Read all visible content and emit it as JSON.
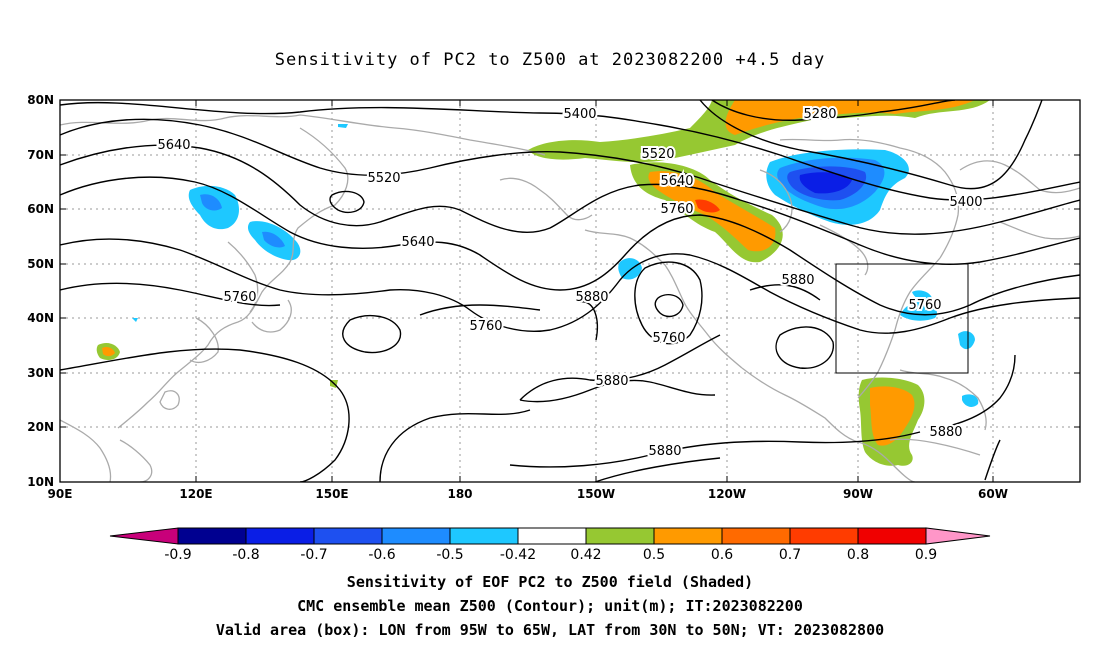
{
  "title": "Sensitivity of PC2 to Z500 at 2023082200 +4.5 day",
  "lat_ticks": [
    "80N",
    "70N",
    "60N",
    "50N",
    "40N",
    "30N",
    "20N",
    "10N"
  ],
  "lon_ticks": [
    "90E",
    "120E",
    "150E",
    "180",
    "150W",
    "120W",
    "90W",
    "60W"
  ],
  "contour_labels": [
    {
      "text": "5400"
    },
    {
      "text": "5280"
    },
    {
      "text": "5640"
    },
    {
      "text": "5520"
    },
    {
      "text": "5520"
    },
    {
      "text": "5640"
    },
    {
      "text": "5760"
    },
    {
      "text": "5400"
    },
    {
      "text": "5640"
    },
    {
      "text": "5760"
    },
    {
      "text": "5880"
    },
    {
      "text": "5880"
    },
    {
      "text": "5760"
    },
    {
      "text": "5760"
    },
    {
      "text": "5760"
    },
    {
      "text": "5880"
    },
    {
      "text": "5880"
    },
    {
      "text": "5880"
    }
  ],
  "colorbar": {
    "labels": [
      "-0.9",
      "-0.8",
      "-0.7",
      "-0.6",
      "-0.5",
      "-0.42",
      "0.42",
      "0.5",
      "0.6",
      "0.7",
      "0.8",
      "0.9"
    ],
    "colors": [
      "#000090",
      "#0a1ee6",
      "#1e50f0",
      "#1e8cff",
      "#1ec8ff",
      "#ffffff",
      "#96c832",
      "#ff9a00",
      "#ff6a00",
      "#ff3c00",
      "#f00000"
    ],
    "end_colors": {
      "left": "#c8007a",
      "right": "#ff96c8"
    }
  },
  "notes": [
    "Sensitivity of EOF PC2 to Z500 field (Shaded)",
    "CMC ensemble mean Z500 (Contour); unit(m); IT:2023082200",
    "Valid area (box): LON from 95W to 65W, LAT from 30N to 50N; VT: 2023082800"
  ]
}
